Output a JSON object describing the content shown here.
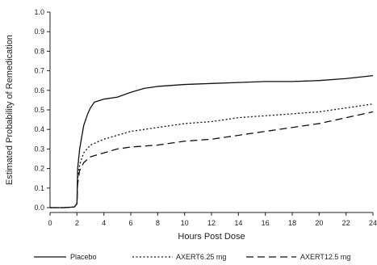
{
  "chart_data": {
    "type": "line",
    "xlabel": "Hours Post Dose",
    "ylabel": "Estimated Probability of Remedication",
    "xlim": [
      0,
      24
    ],
    "ylim": [
      0,
      1.0
    ],
    "x_ticks": [
      "0",
      "2",
      "4",
      "6",
      "8",
      "10",
      "12",
      "14",
      "16",
      "18",
      "20",
      "22",
      "24"
    ],
    "y_ticks": [
      "0.0",
      "0.1",
      "0.2",
      "0.3",
      "0.4",
      "0.5",
      "0.6",
      "0.7",
      "0.8",
      "0.9",
      "1.0"
    ],
    "grid": false,
    "legend_position": "bottom",
    "series": [
      {
        "name": "Placebo",
        "line_style": "solid",
        "points": [
          [
            0,
            0
          ],
          [
            1.0,
            0
          ],
          [
            1.8,
            0.003
          ],
          [
            2.0,
            0.02
          ],
          [
            2.05,
            0.2
          ],
          [
            2.2,
            0.3
          ],
          [
            2.5,
            0.42
          ],
          [
            2.8,
            0.48
          ],
          [
            3.0,
            0.51
          ],
          [
            3.3,
            0.54
          ],
          [
            4.0,
            0.555
          ],
          [
            5.0,
            0.565
          ],
          [
            6.0,
            0.59
          ],
          [
            7.0,
            0.61
          ],
          [
            8.0,
            0.62
          ],
          [
            10.0,
            0.63
          ],
          [
            12.0,
            0.635
          ],
          [
            14.0,
            0.64
          ],
          [
            16.0,
            0.645
          ],
          [
            18.0,
            0.645
          ],
          [
            20.0,
            0.65
          ],
          [
            22.0,
            0.66
          ],
          [
            24.0,
            0.675
          ]
        ]
      },
      {
        "name": "AXERT6.25 mg",
        "line_style": "dotted",
        "points": [
          [
            0,
            0
          ],
          [
            1.0,
            0
          ],
          [
            1.8,
            0.003
          ],
          [
            2.0,
            0.02
          ],
          [
            2.05,
            0.15
          ],
          [
            2.2,
            0.22
          ],
          [
            2.5,
            0.28
          ],
          [
            3.0,
            0.32
          ],
          [
            4.0,
            0.35
          ],
          [
            5.0,
            0.37
          ],
          [
            6.0,
            0.39
          ],
          [
            8.0,
            0.41
          ],
          [
            10.0,
            0.43
          ],
          [
            12.0,
            0.44
          ],
          [
            14.0,
            0.46
          ],
          [
            16.0,
            0.47
          ],
          [
            18.0,
            0.48
          ],
          [
            20.0,
            0.49
          ],
          [
            22.0,
            0.51
          ],
          [
            24.0,
            0.53
          ]
        ]
      },
      {
        "name": "AXERT12.5 mg",
        "line_style": "dashed",
        "points": [
          [
            0,
            0
          ],
          [
            1.0,
            0
          ],
          [
            1.8,
            0.003
          ],
          [
            2.0,
            0.02
          ],
          [
            2.05,
            0.12
          ],
          [
            2.2,
            0.19
          ],
          [
            2.5,
            0.23
          ],
          [
            3.0,
            0.26
          ],
          [
            4.0,
            0.28
          ],
          [
            5.0,
            0.3
          ],
          [
            6.0,
            0.31
          ],
          [
            8.0,
            0.32
          ],
          [
            10.0,
            0.34
          ],
          [
            12.0,
            0.35
          ],
          [
            14.0,
            0.37
          ],
          [
            16.0,
            0.39
          ],
          [
            18.0,
            0.41
          ],
          [
            20.0,
            0.43
          ],
          [
            22.0,
            0.46
          ],
          [
            24.0,
            0.49
          ]
        ]
      }
    ]
  }
}
